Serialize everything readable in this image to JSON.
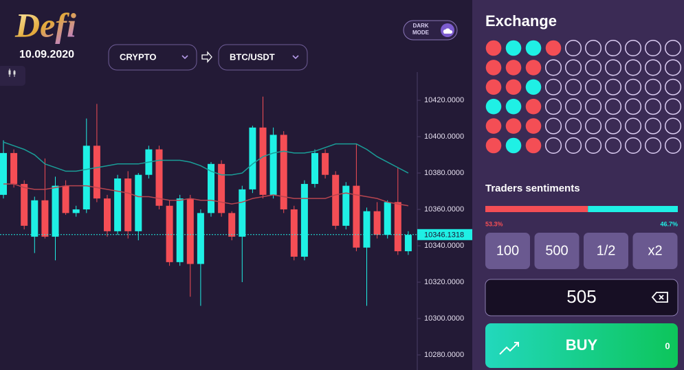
{
  "header": {
    "logo": "Defi",
    "date": "10.09.2020",
    "theme_toggle": "DARK MODE"
  },
  "selectors": {
    "market": "CRYPTO",
    "pair": "BTC/USDT"
  },
  "chart_data": {
    "type": "candlestick",
    "up_color": "#1ff0e5",
    "down_color": "#f44e55",
    "open": [
      10368,
      10391,
      10374,
      10345,
      10365,
      10345,
      10373,
      10358,
      10360,
      10395,
      10366,
      10348,
      10377,
      10348,
      10379,
      10393,
      10362,
      10331,
      10366,
      10330,
      10358,
      10385,
      10358,
      10345,
      10371,
      10405,
      10368,
      10401,
      10360,
      10334,
      10374,
      10391,
      10379,
      10351,
      10373,
      10339,
      10359,
      10346,
      10364,
      10337
    ],
    "high": [
      10398,
      10393,
      10376,
      10367,
      10388,
      10378,
      10376,
      10362,
      10410,
      10418,
      10368,
      10379,
      10381,
      10380,
      10395,
      10395,
      10365,
      10368,
      10368,
      10360,
      10386,
      10387,
      10359,
      10373,
      10406,
      10422,
      10405,
      10403,
      10362,
      10376,
      10393,
      10393,
      10381,
      10375,
      10396,
      10361,
      10364,
      10365,
      10383,
      10348
    ],
    "low": [
      10366,
      10372,
      10349,
      10336,
      10344,
      10332,
      10357,
      10356,
      10358,
      10364,
      10345,
      10346,
      10344,
      10343,
      10377,
      10360,
      10329,
      10329,
      10312,
      10307,
      10356,
      10356,
      10343,
      10320,
      10369,
      10366,
      10366,
      10358,
      10332,
      10332,
      10372,
      10377,
      10349,
      10349,
      10337,
      10307,
      10344,
      10344,
      10335,
      10335
    ],
    "close": [
      10391,
      10374,
      10351,
      10365,
      10345,
      10373,
      10358,
      10360,
      10395,
      10366,
      10348,
      10377,
      10348,
      10379,
      10393,
      10362,
      10331,
      10366,
      10330,
      10358,
      10385,
      10358,
      10345,
      10371,
      10405,
      10368,
      10401,
      10360,
      10334,
      10374,
      10391,
      10379,
      10351,
      10373,
      10339,
      10359,
      10346,
      10364,
      10337,
      10346
    ],
    "series": [
      {
        "color": "#1a9e98",
        "values": [
          10397,
          10395,
          10393,
          10390,
          10385,
          10383,
          10381,
          10381,
          10382,
          10383,
          10384,
          10385,
          10385,
          10385,
          10386,
          10387,
          10387,
          10387,
          10386,
          10384,
          10381,
          10379,
          10379,
          10380,
          10385,
          10389,
          10391,
          10392,
          10391,
          10391,
          10392,
          10394,
          10396,
          10396,
          10396,
          10393,
          10389,
          10386,
          10383,
          10380
        ]
      },
      {
        "color": "#b8454f",
        "values": [
          10374,
          10374,
          10372,
          10371,
          10371,
          10372,
          10373,
          10373,
          10373,
          10372,
          10371,
          10370,
          10369,
          10367,
          10367,
          10366,
          10365,
          10365,
          10366,
          10365,
          10365,
          10364,
          10363,
          10364,
          10366,
          10367,
          10368,
          10367,
          10366,
          10366,
          10366,
          10366,
          10368,
          10369,
          10368,
          10367,
          10366,
          10364,
          10363,
          10362
        ]
      }
    ],
    "ylim": [
      10271.7,
      10435.5
    ],
    "yticks": [
      {
        "value": 10420,
        "label": "10420.0000"
      },
      {
        "value": 10400,
        "label": "10400.0000"
      },
      {
        "value": 10380,
        "label": "10380.0000"
      },
      {
        "value": 10360,
        "label": "10360.0000"
      },
      {
        "value": 10340,
        "label": "10340.0000"
      },
      {
        "value": 10320,
        "label": "10320.0000"
      },
      {
        "value": 10300,
        "label": "10300.0000"
      },
      {
        "value": 10280,
        "label": "10280.0000"
      }
    ],
    "current_price": 10346.1318
  },
  "exchange": {
    "title": "Exchange",
    "grid": [
      [
        "red",
        "cyan",
        "cyan",
        "red",
        null,
        null,
        null,
        null,
        null,
        null
      ],
      [
        "red",
        "red",
        "red",
        null,
        null,
        null,
        null,
        null,
        null,
        null
      ],
      [
        "red",
        "red",
        "cyan",
        null,
        null,
        null,
        null,
        null,
        null,
        null
      ],
      [
        "cyan",
        "cyan",
        "red",
        null,
        null,
        null,
        null,
        null,
        null,
        null
      ],
      [
        "red",
        "red",
        "red",
        null,
        null,
        null,
        null,
        null,
        null,
        null
      ],
      [
        "red",
        "cyan",
        "red",
        null,
        null,
        null,
        null,
        null,
        null,
        null
      ]
    ],
    "colors": {
      "red": "#f44e55",
      "cyan": "#1ff0e5"
    }
  },
  "sentiment": {
    "title": "Traders sentiments",
    "values": [
      53.3,
      46.7
    ],
    "value_labels": [
      "53.3%",
      "46.7%"
    ],
    "colors": [
      "#f44e55",
      "#1ff0e5"
    ]
  },
  "amount_buttons": [
    "100",
    "500",
    "1/2",
    "x2"
  ],
  "amount": 505,
  "buy": {
    "label": "BUY",
    "payout": 0
  }
}
